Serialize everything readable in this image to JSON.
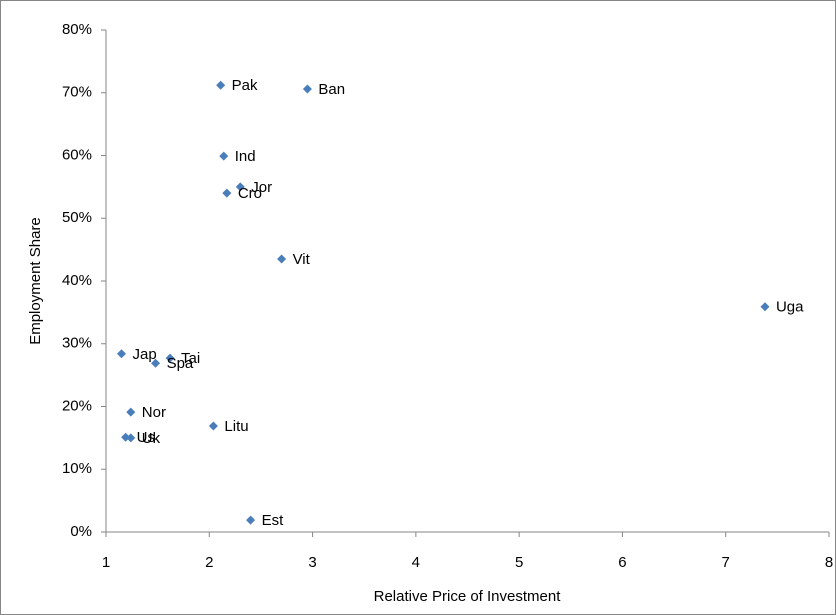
{
  "chart_data": {
    "type": "scatter",
    "x_label": "Relative Price of Investment",
    "y_label": "Employment Share",
    "color": "#4a7ebb",
    "labels": [
      "Pak",
      "Ban",
      "Ind",
      "Jor",
      "Cro",
      "Vit",
      "Uga",
      "Jap",
      "Tai",
      "Spa",
      "Nor",
      "Litu",
      "Us",
      "Uk",
      "Est"
    ],
    "x": [
      2.11,
      2.95,
      2.14,
      2.3,
      2.17,
      2.7,
      7.38,
      1.15,
      1.62,
      1.48,
      1.24,
      2.04,
      1.19,
      1.24,
      2.4
    ],
    "values": [
      71.2,
      70.6,
      59.9,
      55.0,
      54.0,
      43.5,
      35.9,
      28.4,
      27.7,
      26.9,
      19.1,
      16.9,
      15.1,
      15.0,
      1.9
    ],
    "xlim": [
      1,
      8
    ],
    "xticks": [
      1,
      2,
      3,
      4,
      5,
      6,
      7,
      8
    ],
    "ylim": [
      0,
      80
    ],
    "yticks": [
      {
        "value": 0,
        "label": "0%"
      },
      {
        "value": 10,
        "label": "10%"
      },
      {
        "value": 20,
        "label": "20%"
      },
      {
        "value": 30,
        "label": "30%"
      },
      {
        "value": 40,
        "label": "40%"
      },
      {
        "value": 50,
        "label": "50%"
      },
      {
        "value": 60,
        "label": "60%"
      },
      {
        "value": 70,
        "label": "70%"
      },
      {
        "value": 80,
        "label": "80%"
      }
    ],
    "grid": false
  }
}
